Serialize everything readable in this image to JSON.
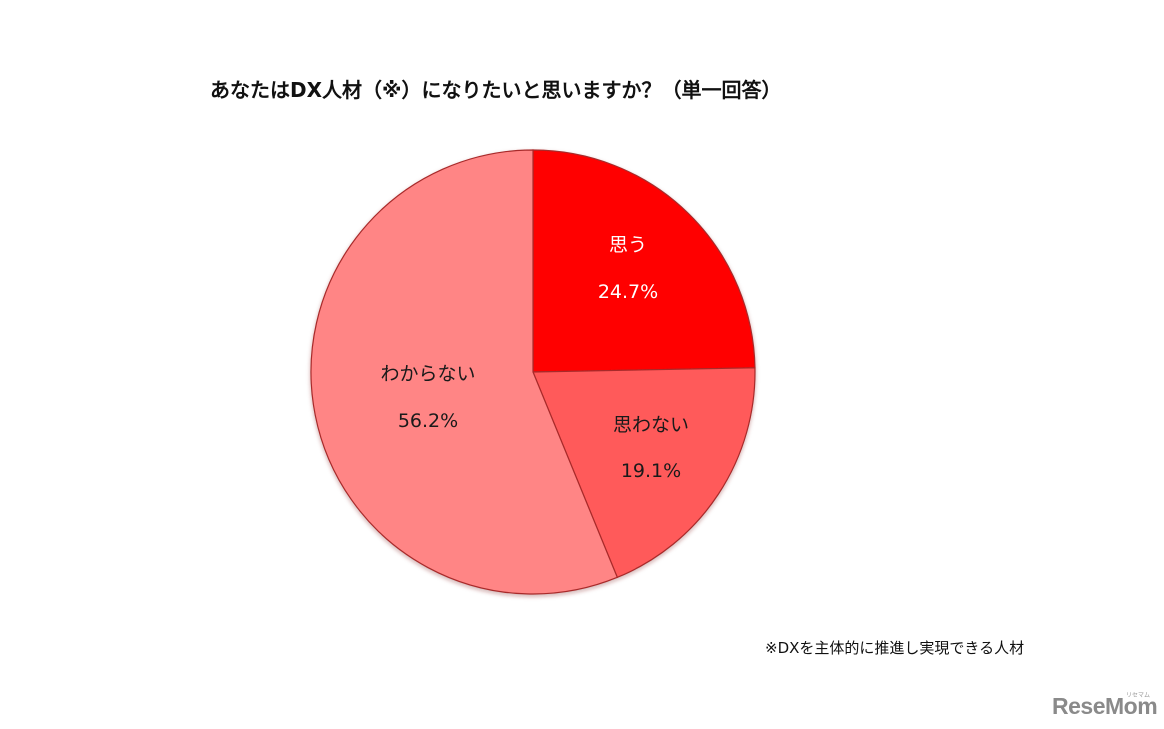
{
  "title": "あなたはDX人材（※）になりたいと思いますか？（単一回答）",
  "footnote": "※DXを主体的に推進し実現できる人材",
  "logo": {
    "text": "ReseMom",
    "sub": "リセマム"
  },
  "slices": [
    {
      "label": "思う",
      "value_label": "24.7%",
      "color": "#ff0000",
      "text_color": "#ffffff"
    },
    {
      "label": "思わない",
      "value_label": "19.1%",
      "color": "#ff5a5a",
      "text_color": "#1a1a1a"
    },
    {
      "label": "わからない",
      "value_label": "56.2%",
      "color": "#ff8585",
      "text_color": "#1a1a1a"
    }
  ],
  "chart_data": {
    "type": "pie",
    "title": "あなたはDX人材（※）になりたいと思いますか？（単一回答）",
    "categories": [
      "思う",
      "思わない",
      "わからない"
    ],
    "values": [
      24.7,
      19.1,
      56.2
    ],
    "unit": "%",
    "colors": [
      "#ff0000",
      "#ff5a5a",
      "#ff8585"
    ],
    "start_angle": "12 o'clock, clockwise",
    "legend": "none (data labels inside slices)",
    "annotation": "※DXを主体的に推進し実現できる人材"
  }
}
